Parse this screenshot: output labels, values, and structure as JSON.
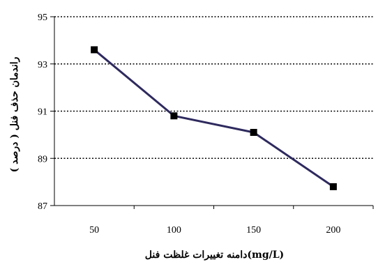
{
  "chart_data": {
    "type": "line",
    "title": "",
    "xlabel": "دامنه تغییرات غلظت فنل(mg/L)",
    "ylabel": "راندمان حذف فنل ( درصد )",
    "categories": [
      "50",
      "100",
      "150",
      "200"
    ],
    "series": [
      {
        "values": [
          93.6,
          90.8,
          90.1,
          87.8
        ]
      }
    ],
    "ylim": [
      87,
      95
    ],
    "yticks": [
      "87",
      "89",
      "91",
      "93",
      "95"
    ],
    "grid": true,
    "grid_style": "dotted",
    "legend": "none",
    "colors": {
      "line": "#2e2a5e",
      "marker": "#000000",
      "grid": "#000000",
      "axis": "#000000"
    }
  }
}
